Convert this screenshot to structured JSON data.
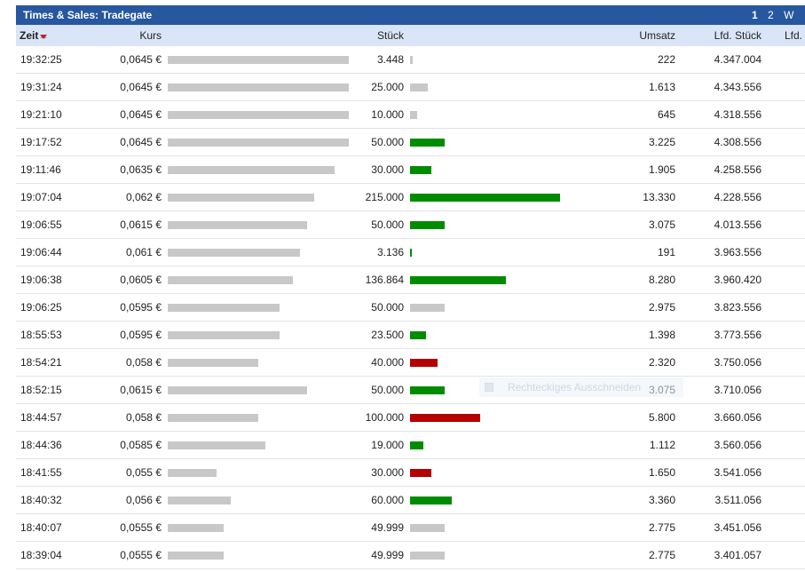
{
  "widget": {
    "title": "Times & Sales: Tradegate",
    "pages": [
      "1",
      "2",
      "W"
    ],
    "active_page": "1"
  },
  "columns": {
    "zeit": "Zeit",
    "kurs": "Kurs",
    "stueck": "Stück",
    "umsatz": "Umsatz",
    "lfd_stueck": "Lfd. Stück",
    "lfd_more": "Lfd."
  },
  "colors": {
    "header_bg": "#27579e",
    "buy": "#008c00",
    "sell": "#b40000",
    "neutral": "#c8c8c8"
  },
  "rows": [
    {
      "zeit": "19:32:25",
      "kurs": "0,0645 €",
      "price": 0.0645,
      "stueck": "3.448",
      "qty": 3448,
      "dir": "neutral",
      "umsatz": "222",
      "lfd": "4.347.004"
    },
    {
      "zeit": "19:31:24",
      "kurs": "0,0645 €",
      "price": 0.0645,
      "stueck": "25.000",
      "qty": 25000,
      "dir": "neutral",
      "umsatz": "1.613",
      "lfd": "4.343.556"
    },
    {
      "zeit": "19:21:10",
      "kurs": "0,0645 €",
      "price": 0.0645,
      "stueck": "10.000",
      "qty": 10000,
      "dir": "neutral",
      "umsatz": "645",
      "lfd": "4.318.556"
    },
    {
      "zeit": "19:17:52",
      "kurs": "0,0645 €",
      "price": 0.0645,
      "stueck": "50.000",
      "qty": 50000,
      "dir": "buy",
      "umsatz": "3.225",
      "lfd": "4.308.556"
    },
    {
      "zeit": "19:11:46",
      "kurs": "0,0635 €",
      "price": 0.0635,
      "stueck": "30.000",
      "qty": 30000,
      "dir": "buy",
      "umsatz": "1.905",
      "lfd": "4.258.556"
    },
    {
      "zeit": "19:07:04",
      "kurs": "0,062 €",
      "price": 0.062,
      "stueck": "215.000",
      "qty": 215000,
      "dir": "buy",
      "umsatz": "13.330",
      "lfd": "4.228.556"
    },
    {
      "zeit": "19:06:55",
      "kurs": "0,0615 €",
      "price": 0.0615,
      "stueck": "50.000",
      "qty": 50000,
      "dir": "buy",
      "umsatz": "3.075",
      "lfd": "4.013.556"
    },
    {
      "zeit": "19:06:44",
      "kurs": "0,061 €",
      "price": 0.061,
      "stueck": "3.136",
      "qty": 3136,
      "dir": "buy",
      "umsatz": "191",
      "lfd": "3.963.556"
    },
    {
      "zeit": "19:06:38",
      "kurs": "0,0605 €",
      "price": 0.0605,
      "stueck": "136.864",
      "qty": 136864,
      "dir": "buy",
      "umsatz": "8.280",
      "lfd": "3.960.420"
    },
    {
      "zeit": "19:06:25",
      "kurs": "0,0595 €",
      "price": 0.0595,
      "stueck": "50.000",
      "qty": 50000,
      "dir": "neutral",
      "umsatz": "2.975",
      "lfd": "3.823.556"
    },
    {
      "zeit": "18:55:53",
      "kurs": "0,0595 €",
      "price": 0.0595,
      "stueck": "23.500",
      "qty": 23500,
      "dir": "buy",
      "umsatz": "1.398",
      "lfd": "3.773.556"
    },
    {
      "zeit": "18:54:21",
      "kurs": "0,058 €",
      "price": 0.058,
      "stueck": "40.000",
      "qty": 40000,
      "dir": "sell",
      "umsatz": "2.320",
      "lfd": "3.750.056"
    },
    {
      "zeit": "18:52:15",
      "kurs": "0,0615 €",
      "price": 0.0615,
      "stueck": "50.000",
      "qty": 50000,
      "dir": "buy",
      "umsatz": "3.075",
      "lfd": "3.710.056"
    },
    {
      "zeit": "18:44:57",
      "kurs": "0,058 €",
      "price": 0.058,
      "stueck": "100.000",
      "qty": 100000,
      "dir": "sell",
      "umsatz": "5.800",
      "lfd": "3.660.056"
    },
    {
      "zeit": "18:44:36",
      "kurs": "0,0585 €",
      "price": 0.0585,
      "stueck": "19.000",
      "qty": 19000,
      "dir": "buy",
      "umsatz": "1.112",
      "lfd": "3.560.056"
    },
    {
      "zeit": "18:41:55",
      "kurs": "0,055 €",
      "price": 0.055,
      "stueck": "30.000",
      "qty": 30000,
      "dir": "sell",
      "umsatz": "1.650",
      "lfd": "3.541.056"
    },
    {
      "zeit": "18:40:32",
      "kurs": "0,056 €",
      "price": 0.056,
      "stueck": "60.000",
      "qty": 60000,
      "dir": "buy",
      "umsatz": "3.360",
      "lfd": "3.511.056"
    },
    {
      "zeit": "18:40:07",
      "kurs": "0,0555 €",
      "price": 0.0555,
      "stueck": "49.999",
      "qty": 49999,
      "dir": "neutral",
      "umsatz": "2.775",
      "lfd": "3.451.056"
    },
    {
      "zeit": "18:39:04",
      "kurs": "0,0555 €",
      "price": 0.0555,
      "stueck": "49.999",
      "qty": 49999,
      "dir": "neutral",
      "umsatz": "2.775",
      "lfd": "3.401.057"
    }
  ],
  "overlay": {
    "label": "Rechteckiges Ausschneiden"
  }
}
